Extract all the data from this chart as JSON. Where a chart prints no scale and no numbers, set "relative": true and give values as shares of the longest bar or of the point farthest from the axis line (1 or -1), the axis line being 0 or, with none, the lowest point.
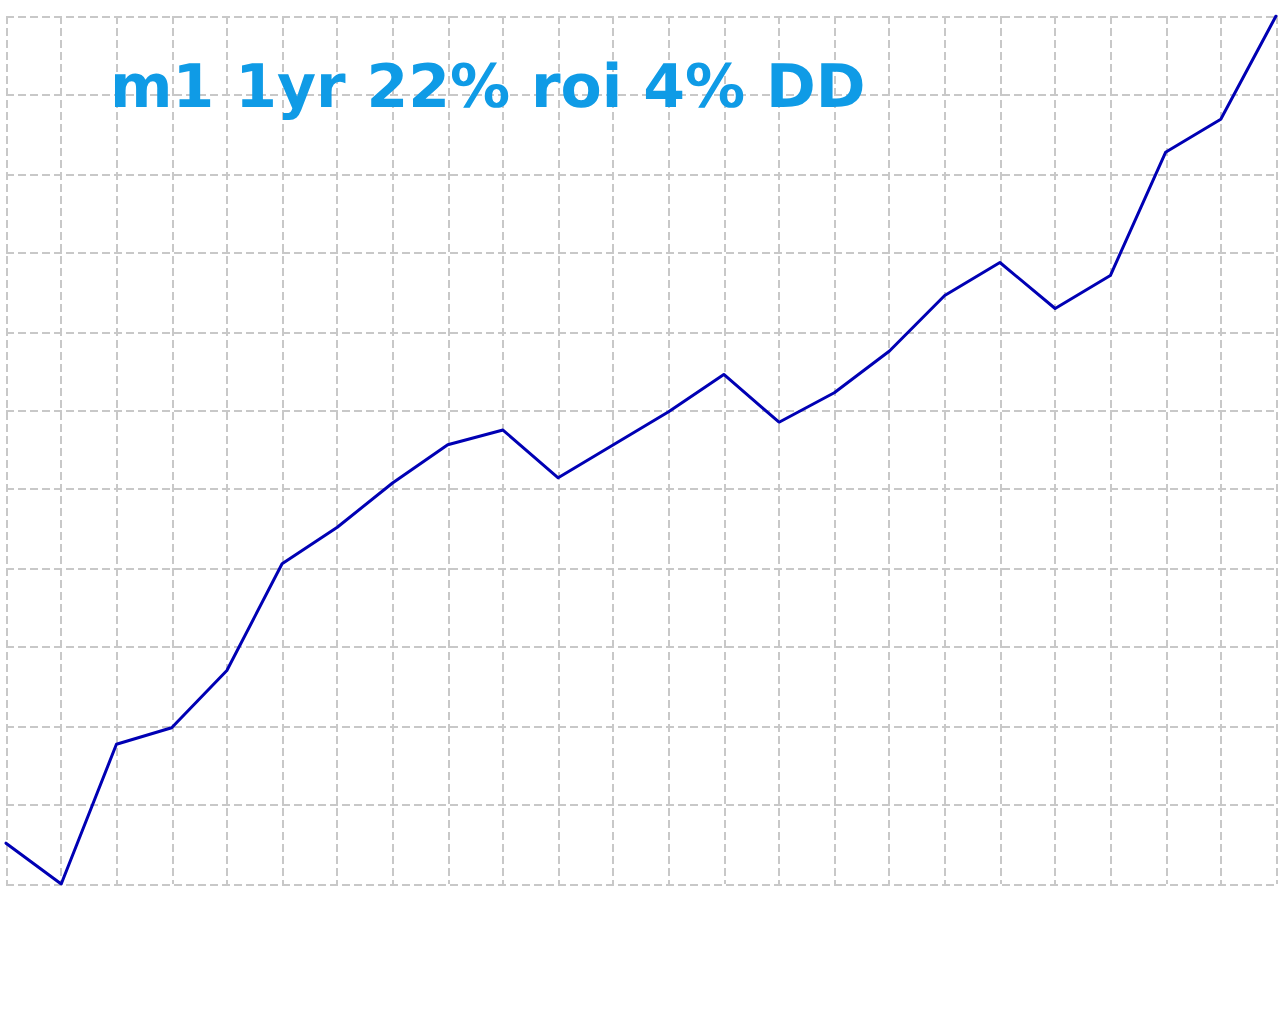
{
  "chart_data": {
    "type": "line",
    "title": "m1 1yr 22% roi 4% DD",
    "relative": true,
    "grid": true,
    "marker": "none",
    "line_style": "solid",
    "categories": [
      null,
      null,
      null,
      null,
      null,
      null,
      null,
      null,
      null,
      null,
      null,
      null,
      null,
      null,
      null,
      null,
      null,
      null,
      null,
      null,
      null,
      null,
      null,
      null
    ],
    "series": [
      {
        "color": "#0000b4",
        "values": [
          0.047,
          0,
          0.161,
          0.18,
          0.246,
          0.369,
          0.411,
          0.462,
          0.506,
          0.523,
          0.468,
          0.506,
          0.544,
          0.587,
          0.532,
          0.566,
          0.614,
          0.678,
          0.716,
          0.663,
          0.701,
          0.843,
          0.881,
          1
        ]
      }
    ]
  }
}
